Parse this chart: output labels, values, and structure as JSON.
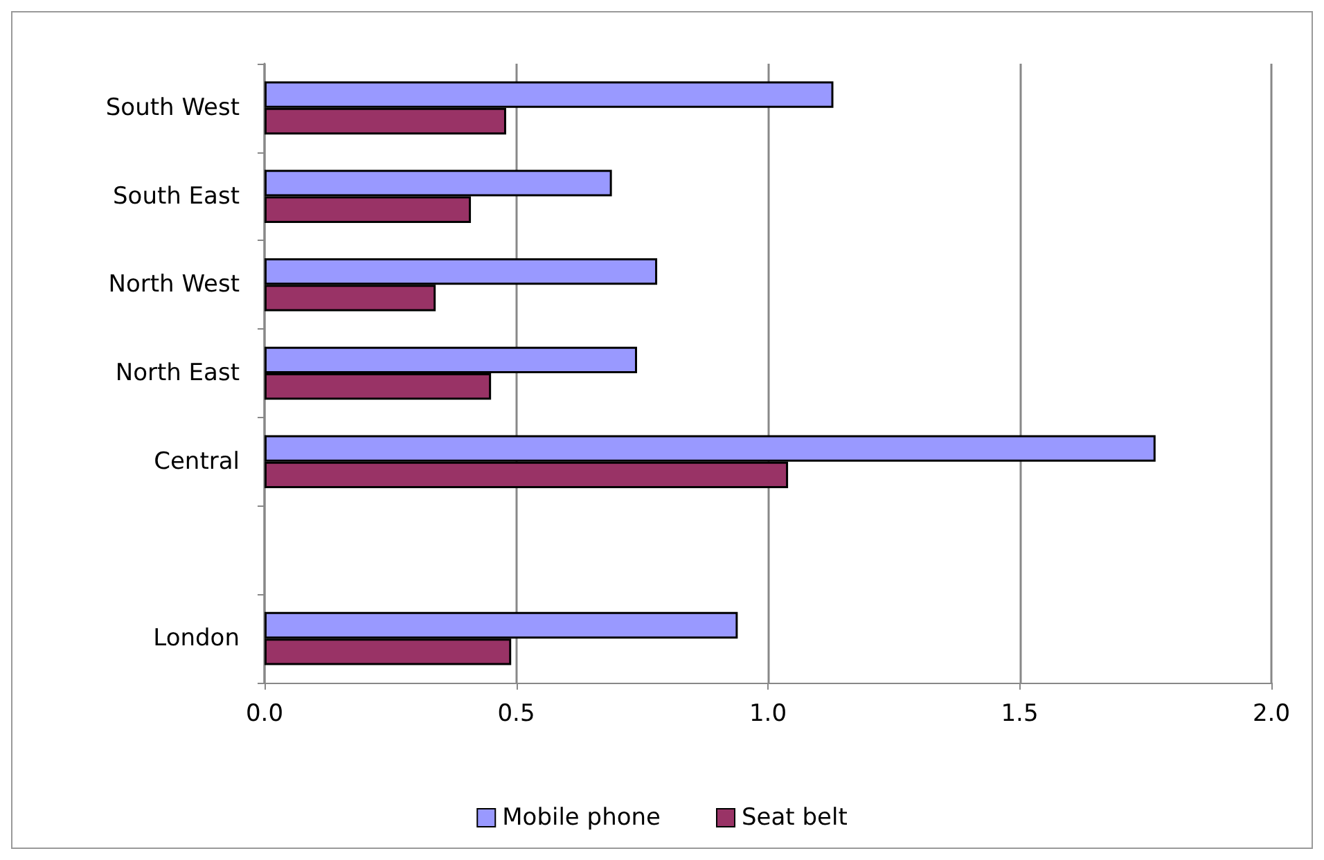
{
  "chart_data": {
    "type": "bar",
    "orientation": "horizontal",
    "categories": [
      "South West",
      "South East",
      "North West",
      "North East",
      "Central",
      null,
      "London"
    ],
    "series": [
      {
        "name": "Mobile phone",
        "color": "#9999ff",
        "values": [
          1.13,
          0.69,
          0.78,
          0.74,
          1.77,
          null,
          0.94
        ]
      },
      {
        "name": "Seat belt",
        "color": "#993366",
        "values": [
          0.48,
          0.41,
          0.34,
          0.45,
          1.04,
          null,
          0.49
        ]
      }
    ],
    "xlim": [
      0,
      2
    ],
    "xticks": [
      {
        "value": 0,
        "label": "0.0"
      },
      {
        "value": 0.5,
        "label": "0.5"
      },
      {
        "value": 1,
        "label": "1.0"
      },
      {
        "value": 1.5,
        "label": "1.5"
      },
      {
        "value": 2,
        "label": "2.0"
      }
    ],
    "grid": "x",
    "legend": "bottom"
  }
}
